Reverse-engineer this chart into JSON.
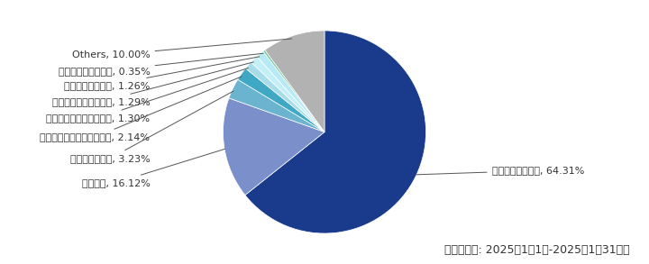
{
  "labels": [
    "注文や支払い通知, 64.31%",
    "配送関連, 16.12%",
    "問い合わせ関連, 3.23%",
    "スケジュールの確認や調整, 2.14%",
    "書類確認やファイル共有, 1.30%",
    "着信やメッセージ通知, 1.29%",
    "セキュリティ通知, 1.26%",
    "宿泊や移動予約関連, 0.35%",
    "Others, 10.00%"
  ],
  "values": [
    64.31,
    16.12,
    3.23,
    2.14,
    1.3,
    1.29,
    1.26,
    0.35,
    10.0
  ],
  "colors": [
    "#1a3a8c",
    "#7b8fcb",
    "#6ab4d0",
    "#3ea8c5",
    "#a8dce8",
    "#c5eff7",
    "#b8eaf5",
    "#72c9a0",
    "#b2b2b2"
  ],
  "note": "（集計期間: 2025年1月1日-2025年1月31日）",
  "label_fontsize": 8,
  "note_fontsize": 9
}
